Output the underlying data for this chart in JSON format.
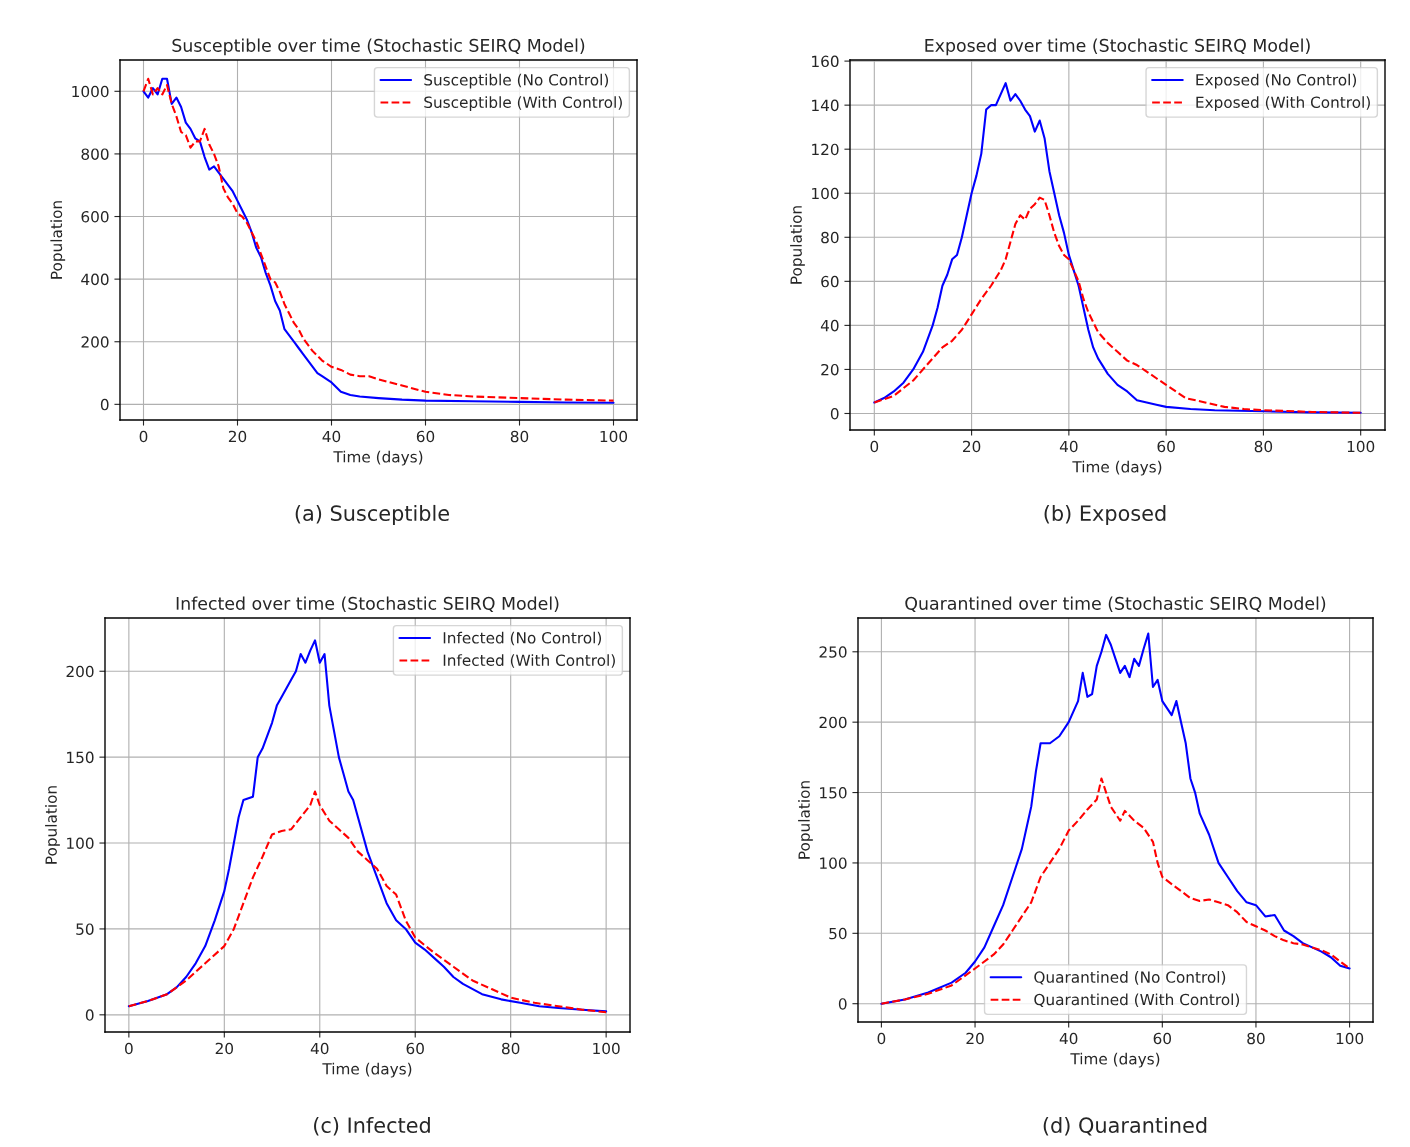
{
  "chart_data": [
    {
      "type": "line",
      "title": "Susceptible over time (Stochastic SEIRQ Model)",
      "xlabel": "Time (days)",
      "ylabel": "Population",
      "annotations": [
        "(a) Susceptible"
      ],
      "xlim": [
        -5,
        105
      ],
      "ylim": [
        -50,
        1100
      ],
      "xticks": [
        0,
        20,
        40,
        60,
        80,
        100
      ],
      "yticks": [
        0,
        200,
        400,
        600,
        800,
        1000
      ],
      "grid": true,
      "legend": "top right",
      "series": [
        {
          "name": "Susceptible (No Control)",
          "color": "#0000ff",
          "line_style": "solid",
          "x": [
            0,
            1,
            2,
            3,
            4,
            5,
            6,
            7,
            8,
            9,
            10,
            11,
            12,
            13,
            14,
            15,
            16,
            17,
            18,
            19,
            20,
            21,
            22,
            23,
            24,
            25,
            26,
            27,
            28,
            29,
            30,
            31,
            32,
            33,
            34,
            35,
            36,
            37,
            38,
            40,
            42,
            44,
            46,
            50,
            55,
            60,
            70,
            80,
            90,
            100
          ],
          "values": [
            1000,
            980,
            1010,
            990,
            1040,
            1040,
            960,
            980,
            950,
            900,
            880,
            850,
            840,
            790,
            750,
            760,
            740,
            720,
            700,
            680,
            650,
            620,
            590,
            550,
            500,
            470,
            420,
            380,
            330,
            300,
            240,
            220,
            200,
            180,
            160,
            140,
            120,
            100,
            90,
            70,
            40,
            30,
            25,
            20,
            15,
            12,
            10,
            8,
            6,
            5
          ]
        },
        {
          "name": "Susceptible (With Control)",
          "color": "#ff0000",
          "line_style": "dashed",
          "x": [
            0,
            1,
            2,
            3,
            4,
            5,
            6,
            7,
            8,
            9,
            10,
            11,
            12,
            13,
            14,
            15,
            16,
            17,
            18,
            19,
            20,
            21,
            22,
            23,
            24,
            25,
            26,
            27,
            28,
            29,
            30,
            31,
            32,
            33,
            34,
            35,
            36,
            38,
            40,
            42,
            44,
            46,
            48,
            50,
            55,
            60,
            65,
            70,
            80,
            90,
            100
          ],
          "values": [
            1000,
            1040,
            990,
            1010,
            990,
            1020,
            960,
            920,
            870,
            860,
            820,
            840,
            840,
            880,
            830,
            800,
            760,
            690,
            660,
            640,
            610,
            600,
            580,
            550,
            520,
            480,
            440,
            400,
            390,
            360,
            320,
            290,
            260,
            240,
            210,
            190,
            170,
            140,
            120,
            110,
            95,
            90,
            90,
            80,
            60,
            40,
            30,
            25,
            20,
            15,
            12
          ]
        }
      ]
    },
    {
      "type": "line",
      "title": "Exposed over time (Stochastic SEIRQ Model)",
      "xlabel": "Time (days)",
      "ylabel": "Population",
      "annotations": [
        "(b) Exposed"
      ],
      "xlim": [
        -5,
        105
      ],
      "ylim": [
        -7.5,
        160.5
      ],
      "xticks": [
        0,
        20,
        40,
        60,
        80,
        100
      ],
      "yticks": [
        0,
        20,
        40,
        60,
        80,
        100,
        120,
        140,
        160
      ],
      "grid": true,
      "legend": "top right",
      "series": [
        {
          "name": "Exposed (No Control)",
          "color": "#0000ff",
          "line_style": "solid",
          "x": [
            0,
            2,
            4,
            6,
            8,
            10,
            12,
            13,
            14,
            15,
            16,
            17,
            18,
            19,
            20,
            21,
            22,
            23,
            24,
            25,
            26,
            27,
            28,
            29,
            30,
            31,
            32,
            33,
            34,
            35,
            36,
            37,
            38,
            39,
            40,
            41,
            42,
            43,
            44,
            45,
            46,
            48,
            50,
            52,
            54,
            56,
            58,
            60,
            65,
            70,
            80,
            90,
            100
          ],
          "values": [
            5,
            7,
            10,
            14,
            20,
            28,
            40,
            48,
            58,
            63,
            70,
            72,
            80,
            90,
            100,
            108,
            118,
            138,
            140,
            140,
            145,
            150,
            142,
            145,
            142,
            138,
            135,
            128,
            133,
            125,
            110,
            100,
            90,
            82,
            72,
            65,
            58,
            48,
            38,
            30,
            25,
            18,
            13,
            10,
            6,
            5,
            4,
            3,
            2,
            1.5,
            1,
            0.5,
            0.3
          ]
        },
        {
          "name": "Exposed (With Control)",
          "color": "#ff0000",
          "line_style": "dashed",
          "x": [
            0,
            4,
            8,
            12,
            14,
            16,
            18,
            20,
            22,
            24,
            26,
            27,
            28,
            29,
            30,
            31,
            32,
            33,
            34,
            35,
            36,
            37,
            38,
            39,
            40,
            41,
            42,
            43,
            44,
            46,
            48,
            50,
            52,
            54,
            56,
            58,
            60,
            62,
            64,
            68,
            72,
            76,
            80,
            90,
            100
          ],
          "values": [
            5,
            8,
            15,
            25,
            30,
            33,
            38,
            45,
            52,
            58,
            65,
            70,
            78,
            86,
            90,
            88,
            93,
            95,
            98,
            97,
            90,
            82,
            76,
            72,
            70,
            65,
            60,
            52,
            46,
            37,
            32,
            28,
            24,
            22,
            19,
            16,
            13,
            10,
            7,
            5,
            3,
            2,
            1.5,
            0.7,
            0.3
          ]
        }
      ]
    },
    {
      "type": "line",
      "title": "Infected over time (Stochastic SEIRQ Model)",
      "xlabel": "Time (days)",
      "ylabel": "Population",
      "annotations": [
        "(c) Infected"
      ],
      "xlim": [
        -5,
        105
      ],
      "ylim": [
        -10,
        231
      ],
      "xticks": [
        0,
        20,
        40,
        60,
        80,
        100
      ],
      "yticks": [
        0,
        50,
        100,
        150,
        200
      ],
      "grid": true,
      "legend": "top right",
      "series": [
        {
          "name": "Infected (No Control)",
          "color": "#0000ff",
          "line_style": "solid",
          "x": [
            0,
            4,
            8,
            10,
            12,
            14,
            16,
            18,
            20,
            21,
            22,
            23,
            24,
            26,
            27,
            28,
            30,
            31,
            32,
            34,
            35,
            36,
            37,
            38,
            39,
            40,
            41,
            42,
            43,
            44,
            45,
            46,
            47,
            48,
            50,
            52,
            54,
            56,
            58,
            60,
            62,
            64,
            66,
            68,
            70,
            74,
            78,
            82,
            86,
            90,
            95,
            100
          ],
          "values": [
            5,
            8,
            12,
            16,
            22,
            30,
            40,
            55,
            72,
            85,
            100,
            115,
            125,
            127,
            150,
            155,
            170,
            180,
            185,
            195,
            200,
            210,
            205,
            212,
            218,
            205,
            210,
            180,
            165,
            150,
            140,
            130,
            125,
            115,
            95,
            80,
            65,
            55,
            50,
            42,
            38,
            33,
            28,
            22,
            18,
            12,
            9,
            7,
            5,
            4,
            3,
            2
          ]
        },
        {
          "name": "Infected (With Control)",
          "color": "#ff0000",
          "line_style": "dashed",
          "x": [
            0,
            4,
            8,
            12,
            16,
            20,
            22,
            24,
            26,
            28,
            30,
            32,
            34,
            36,
            38,
            39,
            40,
            42,
            44,
            46,
            48,
            50,
            52,
            54,
            56,
            58,
            60,
            64,
            68,
            72,
            76,
            80,
            85,
            90,
            95,
            100
          ],
          "values": [
            5,
            8,
            12,
            20,
            30,
            40,
            50,
            65,
            80,
            92,
            105,
            107,
            108,
            115,
            122,
            130,
            122,
            113,
            108,
            103,
            95,
            90,
            85,
            75,
            70,
            55,
            45,
            36,
            28,
            20,
            15,
            10,
            7,
            5,
            3,
            1.5
          ]
        }
      ]
    },
    {
      "type": "line",
      "title": "Quarantined over time (Stochastic SEIRQ Model)",
      "xlabel": "Time (days)",
      "ylabel": "Population",
      "annotations": [
        "(d) Quarantined"
      ],
      "xlim": [
        -5,
        105
      ],
      "ylim": [
        -13,
        274
      ],
      "xticks": [
        0,
        20,
        40,
        60,
        80,
        100
      ],
      "yticks": [
        0,
        50,
        100,
        150,
        200,
        250
      ],
      "grid": true,
      "legend": "bottom",
      "series": [
        {
          "name": "Quarantined (No Control)",
          "color": "#0000ff",
          "line_style": "solid",
          "x": [
            0,
            5,
            10,
            15,
            18,
            20,
            22,
            24,
            26,
            28,
            30,
            31,
            32,
            33,
            34,
            36,
            38,
            40,
            42,
            43,
            44,
            45,
            46,
            47,
            48,
            49,
            50,
            51,
            52,
            53,
            54,
            55,
            56,
            57,
            58,
            59,
            60,
            61,
            62,
            63,
            64,
            65,
            66,
            67,
            68,
            70,
            72,
            74,
            76,
            78,
            80,
            82,
            84,
            86,
            88,
            90,
            92,
            94,
            96,
            98,
            100
          ],
          "values": [
            0,
            3,
            8,
            15,
            22,
            30,
            40,
            55,
            70,
            90,
            110,
            125,
            140,
            165,
            185,
            185,
            190,
            200,
            215,
            235,
            218,
            220,
            240,
            250,
            262,
            255,
            245,
            235,
            240,
            232,
            245,
            240,
            252,
            263,
            225,
            230,
            215,
            210,
            205,
            215,
            200,
            185,
            160,
            150,
            135,
            120,
            100,
            90,
            80,
            72,
            70,
            62,
            63,
            52,
            48,
            43,
            40,
            37,
            33,
            27,
            25
          ]
        },
        {
          "name": "Quarantined (With Control)",
          "color": "#ff0000",
          "line_style": "dashed",
          "x": [
            0,
            5,
            10,
            15,
            20,
            24,
            26,
            28,
            30,
            32,
            34,
            36,
            38,
            40,
            42,
            44,
            46,
            47,
            48,
            49,
            50,
            51,
            52,
            54,
            56,
            58,
            59,
            60,
            62,
            64,
            66,
            68,
            70,
            72,
            74,
            76,
            78,
            80,
            82,
            84,
            86,
            88,
            90,
            92,
            94,
            96,
            98,
            100
          ],
          "values": [
            0,
            3,
            7,
            13,
            25,
            35,
            42,
            52,
            62,
            72,
            90,
            100,
            110,
            123,
            130,
            138,
            145,
            160,
            150,
            140,
            135,
            130,
            137,
            130,
            125,
            115,
            100,
            90,
            85,
            80,
            75,
            73,
            74,
            72,
            70,
            65,
            58,
            55,
            52,
            48,
            45,
            43,
            42,
            40,
            38,
            35,
            30,
            25
          ]
        }
      ]
    }
  ]
}
